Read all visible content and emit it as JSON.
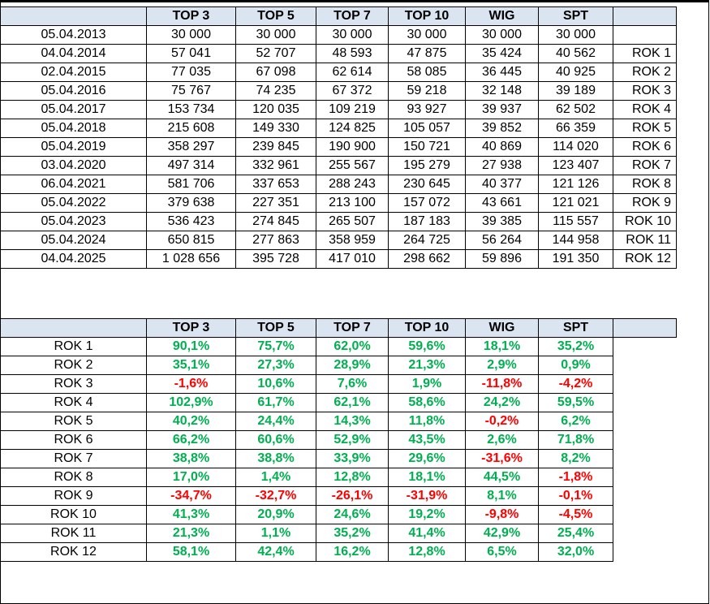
{
  "top_table": {
    "headers": [
      "",
      "TOP 3",
      "TOP 5",
      "TOP 7",
      "TOP 10",
      "WIG",
      "SPT",
      ""
    ],
    "rows": [
      {
        "date": "05.04.2013",
        "values": [
          "30 000",
          "30 000",
          "30 000",
          "30 000",
          "30 000",
          "30 000"
        ],
        "rok": ""
      },
      {
        "date": "04.04.2014",
        "values": [
          "57 041",
          "52 707",
          "48 593",
          "47 875",
          "35 424",
          "40 562"
        ],
        "rok": "ROK 1"
      },
      {
        "date": "02.04.2015",
        "values": [
          "77 035",
          "67 098",
          "62 614",
          "58 085",
          "36 445",
          "40 925"
        ],
        "rok": "ROK 2"
      },
      {
        "date": "05.04.2016",
        "values": [
          "75 767",
          "74 235",
          "67 372",
          "59 218",
          "32 148",
          "39 189"
        ],
        "rok": "ROK 3"
      },
      {
        "date": "05.04.2017",
        "values": [
          "153 734",
          "120 035",
          "109 219",
          "93 927",
          "39 937",
          "62 502"
        ],
        "rok": "ROK 4"
      },
      {
        "date": "05.04.2018",
        "values": [
          "215 608",
          "149 330",
          "124 825",
          "105 057",
          "39 852",
          "66 359"
        ],
        "rok": "ROK 5"
      },
      {
        "date": "05.04.2019",
        "values": [
          "358 297",
          "239 845",
          "190 900",
          "150 721",
          "40 869",
          "114 020"
        ],
        "rok": "ROK 6"
      },
      {
        "date": "03.04.2020",
        "values": [
          "497 314",
          "332 961",
          "255 567",
          "195 279",
          "27 938",
          "123 407"
        ],
        "rok": "ROK 7"
      },
      {
        "date": "06.04.2021",
        "values": [
          "581 706",
          "337 653",
          "288 243",
          "230 645",
          "40 377",
          "121 126"
        ],
        "rok": "ROK 8"
      },
      {
        "date": "05.04.2022",
        "values": [
          "379 638",
          "227 351",
          "213 100",
          "157 072",
          "43 661",
          "121 021"
        ],
        "rok": "ROK 9"
      },
      {
        "date": "05.04.2023",
        "values": [
          "536 423",
          "274 845",
          "265 507",
          "187 183",
          "39 385",
          "115 557"
        ],
        "rok": "ROK 10"
      },
      {
        "date": "05.04.2024",
        "values": [
          "650 815",
          "277 863",
          "358 959",
          "264 725",
          "56 264",
          "144 958"
        ],
        "rok": "ROK 11"
      },
      {
        "date": "04.04.2025",
        "values": [
          "1 028 656",
          "395 728",
          "417 010",
          "298 662",
          "59 896",
          "191 350"
        ],
        "rok": "ROK 12"
      }
    ]
  },
  "bottom_table": {
    "headers": [
      "",
      "TOP 3",
      "TOP 5",
      "TOP 7",
      "TOP 10",
      "WIG",
      "SPT",
      ""
    ],
    "rows": [
      {
        "label": "ROK 1",
        "values": [
          "90,1%",
          "75,7%",
          "62,0%",
          "59,6%",
          "18,1%",
          "35,2%"
        ]
      },
      {
        "label": "ROK 2",
        "values": [
          "35,1%",
          "27,3%",
          "28,9%",
          "21,3%",
          "2,9%",
          "0,9%"
        ]
      },
      {
        "label": "ROK 3",
        "values": [
          "-1,6%",
          "10,6%",
          "7,6%",
          "1,9%",
          "-11,8%",
          "-4,2%"
        ]
      },
      {
        "label": "ROK 4",
        "values": [
          "102,9%",
          "61,7%",
          "62,1%",
          "58,6%",
          "24,2%",
          "59,5%"
        ]
      },
      {
        "label": "ROK 5",
        "values": [
          "40,2%",
          "24,4%",
          "14,3%",
          "11,8%",
          "-0,2%",
          "6,2%"
        ]
      },
      {
        "label": "ROK 6",
        "values": [
          "66,2%",
          "60,6%",
          "52,9%",
          "43,5%",
          "2,6%",
          "71,8%"
        ]
      },
      {
        "label": "ROK 7",
        "values": [
          "38,8%",
          "38,8%",
          "33,9%",
          "29,6%",
          "-31,6%",
          "8,2%"
        ]
      },
      {
        "label": "ROK 8",
        "values": [
          "17,0%",
          "1,4%",
          "12,8%",
          "18,1%",
          "44,5%",
          "-1,8%"
        ]
      },
      {
        "label": "ROK 9",
        "values": [
          "-34,7%",
          "-32,7%",
          "-26,1%",
          "-31,9%",
          "8,1%",
          "-0,1%"
        ]
      },
      {
        "label": "ROK 10",
        "values": [
          "41,3%",
          "20,9%",
          "24,6%",
          "19,2%",
          "-9,8%",
          "-4,5%"
        ]
      },
      {
        "label": "ROK 11",
        "values": [
          "21,3%",
          "1,1%",
          "35,2%",
          "41,4%",
          "42,9%",
          "25,4%"
        ]
      },
      {
        "label": "ROK 12",
        "values": [
          "58,1%",
          "42,4%",
          "16,2%",
          "12,8%",
          "6,5%",
          "32,0%"
        ]
      }
    ]
  },
  "colors": {
    "header_bg": "#dbe5f1",
    "positive": "#00b050",
    "negative": "#ff0000"
  }
}
